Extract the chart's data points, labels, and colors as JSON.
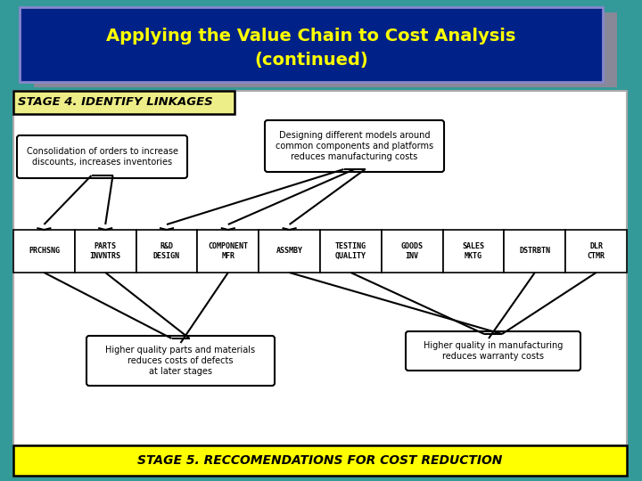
{
  "title_line1": "Applying the Value Chain to Cost Analysis",
  "title_line2": "(continued)",
  "title_bg": "#002288",
  "title_border": "#8888cc",
  "title_shadow": "#888899",
  "title_text_color": "#ffff00",
  "background_color": "#339999",
  "stage4_label": "STAGE 4. IDENTIFY LINKAGES",
  "stage5_label": "STAGE 5. RECCOMENDATIONS FOR COST REDUCTION",
  "stage4_bg": "#eeee88",
  "stage5_bg": "#ffff00",
  "chain_boxes": [
    "PRCHSNG",
    "PARTS\nINVNTRS",
    "R&D\nDESIGN",
    "COMPONENT\nMFR",
    "ASSMBY",
    "TESTING\nQUALITY",
    "GOODS\nINV",
    "SALES\nMKTG",
    "DSTRBTN",
    "DLR\nCTMR"
  ],
  "annotation_top_left": "Consolidation of orders to increase\ndiscounts, increases inventories",
  "annotation_top_right": "Designing different models around\ncommon components and platforms\nreduces manufacturing costs",
  "annotation_bottom_left": "Higher quality parts and materials\nreduces costs of defects\nat later stages",
  "annotation_bottom_right": "Higher quality in manufacturing\nreduces warranty costs",
  "white_panel_bg": "#ffffff",
  "box_border": "#000000",
  "text_color": "#000000"
}
